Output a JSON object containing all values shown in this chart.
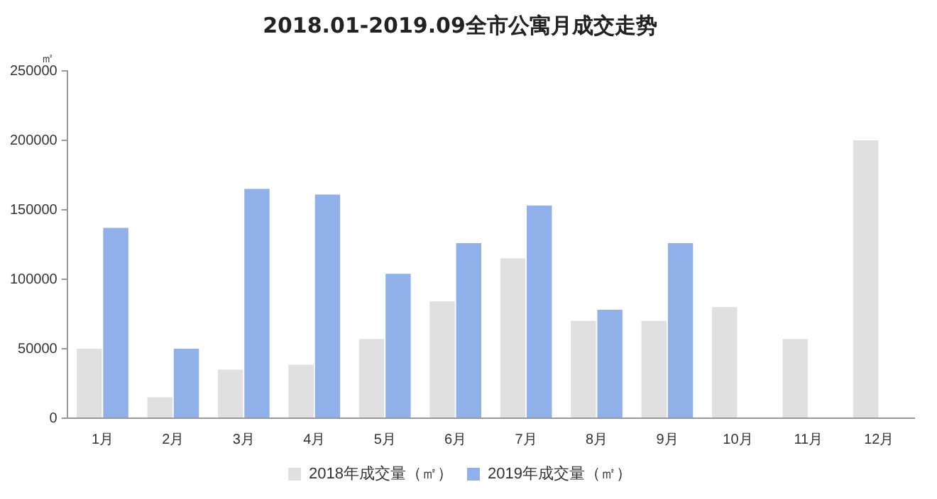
{
  "chart_data": {
    "type": "bar",
    "title": "2018.01-2019.09全市公寓月成交走势",
    "ylabel": "㎡",
    "categories": [
      "1月",
      "2月",
      "3月",
      "4月",
      "5月",
      "6月",
      "7月",
      "8月",
      "9月",
      "10月",
      "11月",
      "12月"
    ],
    "series": [
      {
        "name": "2018年成交量（㎡）",
        "color": "#e0e0e0",
        "values": [
          50000,
          15000,
          35000,
          38500,
          57000,
          84000,
          115000,
          70000,
          70000,
          80000,
          57000,
          200000
        ]
      },
      {
        "name": "2019年成交量（㎡）",
        "color": "#8fb0e8",
        "values": [
          137000,
          50000,
          165000,
          161000,
          104000,
          126000,
          153000,
          78000,
          126000,
          null,
          null,
          null
        ]
      }
    ],
    "ylim": [
      0,
      250000
    ],
    "yticks": [
      0,
      50000,
      100000,
      150000,
      200000,
      250000
    ],
    "grid": false,
    "legend": "bottom"
  }
}
